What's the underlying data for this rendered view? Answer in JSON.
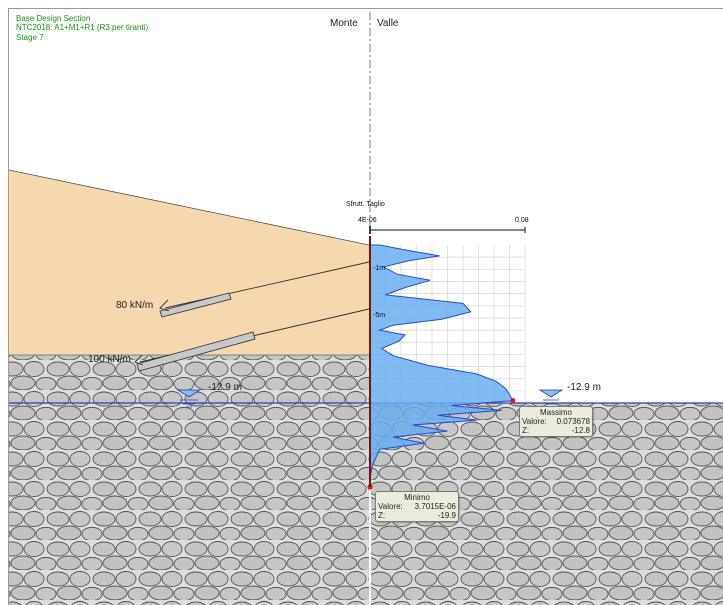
{
  "header": {
    "line1": "Base Design Section",
    "line2": "NTC2018: A1+M1+R1 (R3 per tiranti)",
    "line3": "Stage 7"
  },
  "sides": {
    "left": "Monte",
    "right": "Valle"
  },
  "anchors": [
    {
      "label": "80 kN/m"
    },
    {
      "label": "100 kN/m"
    }
  ],
  "water_level": {
    "left_label": "-12.9 m",
    "right_label": "-12.9 m"
  },
  "diagram": {
    "title": "Sfrutt. Taglio",
    "axis_min": "4E-06",
    "axis_max": "0.08",
    "depth_labels": [
      "-1m",
      "-5m"
    ]
  },
  "max_callout": {
    "title": "Massimo",
    "value_label": "Valore:",
    "value": "0.073678",
    "z_label": "Z",
    "z": "-12.8"
  },
  "min_callout": {
    "title": "Minimo",
    "value_label": "Valore:",
    "value": "3.7015E-06",
    "z_label": "Z",
    "z": "-19.9"
  },
  "colors": {
    "header_text": "#1a8f1a",
    "soil_fill": "#f3d9ad",
    "rock_fill": "#c9c9c9",
    "diagram_fill": "#6aaef0",
    "diagram_line": "#1f4fd0",
    "water_line": "#2a3fb8",
    "extreme_point": "#d42020"
  },
  "chart_data": {
    "type": "area",
    "title": "Sfrutt. Taglio",
    "xlabel": "",
    "ylabel": "",
    "xlim": [
      4e-06,
      0.08
    ],
    "ylim": [
      -19.9,
      0
    ],
    "series": [
      {
        "z": [
          0,
          -0.4,
          -0.9,
          -1.3,
          -1.8,
          -2.4,
          -2.9,
          -3.5,
          -4.1,
          -4.8,
          -5.5,
          -6.1,
          -6.6,
          -7.0,
          -7.4,
          -7.9,
          -8.5,
          -9.1,
          -9.9,
          -10.6,
          -11.2,
          -11.8,
          -12.3,
          -12.8,
          -13.2,
          -13.6,
          -14.0,
          -14.4,
          -14.8,
          -15.3,
          -15.8,
          -16.3,
          -16.8,
          -17.5,
          -18.3,
          -19.2,
          -19.9
        ],
        "values": [
          0.005,
          0.018,
          0.036,
          0.02,
          0.007,
          0.014,
          0.031,
          0.018,
          0.008,
          0.048,
          0.052,
          0.037,
          0.012,
          0.005,
          0.018,
          0.015,
          0.006,
          0.012,
          0.03,
          0.055,
          0.065,
          0.07,
          0.072,
          0.073678,
          0.042,
          0.068,
          0.035,
          0.055,
          0.022,
          0.04,
          0.012,
          0.028,
          0.005,
          0.003,
          0.001,
          1e-05,
          3.7015e-06
        ]
      }
    ],
    "annotations": [
      {
        "label": "Massimo",
        "value": 0.073678,
        "z": -12.8
      },
      {
        "label": "Minimo",
        "value": 3.7015e-06,
        "z": -19.9
      }
    ]
  }
}
